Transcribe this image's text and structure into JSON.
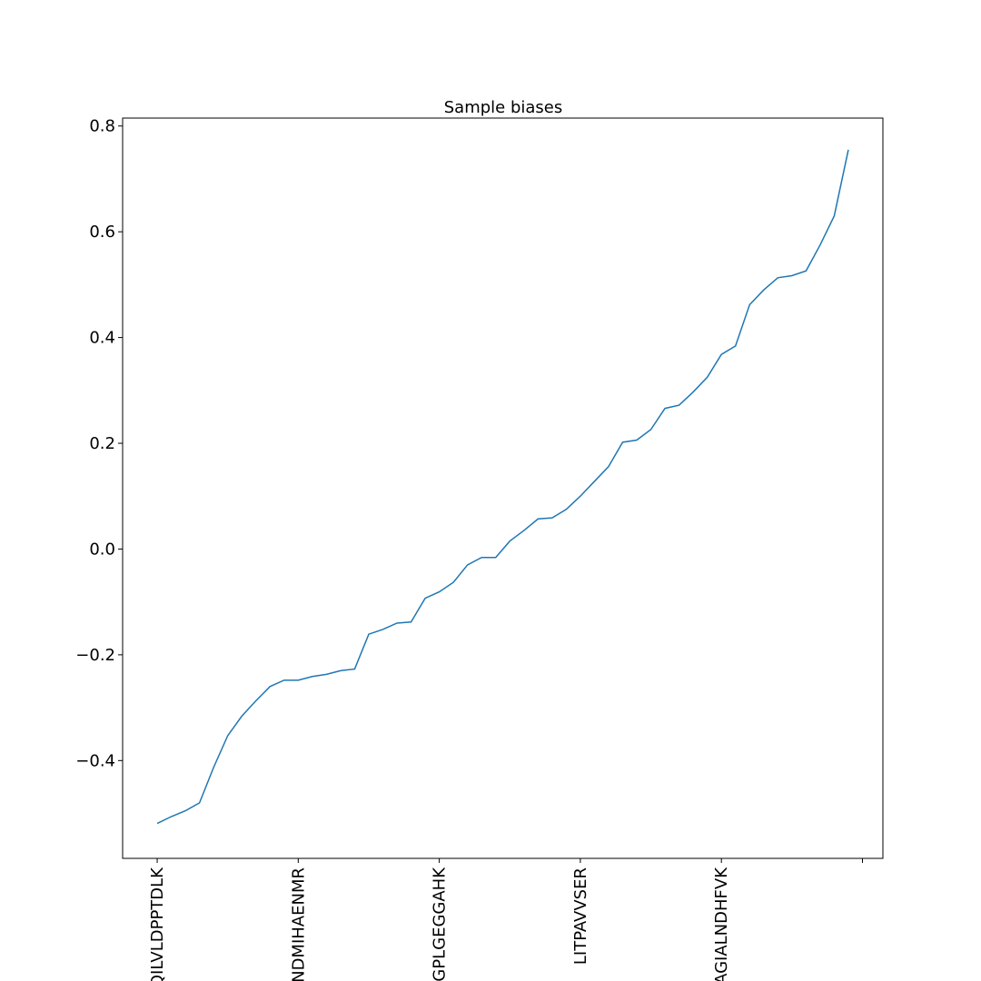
{
  "chart_data": {
    "type": "line",
    "title": "Sample biases",
    "xlabel": "",
    "ylabel": "",
    "ylim": [
      -0.585,
      0.815
    ],
    "yticks": [
      -0.4,
      -0.2,
      0.0,
      0.2,
      0.4,
      0.6,
      0.8
    ],
    "ytick_labels": [
      "−0.4",
      "−0.2",
      "0.0",
      "0.2",
      "0.4",
      "0.6",
      "0.8"
    ],
    "xlim": [
      -2.45,
      51.45
    ],
    "xticks": [
      0,
      10,
      20,
      30,
      40,
      50
    ],
    "xtick_labels": [
      "QILVLDPPTDLK",
      "ANDMIHAENMR",
      "VGPLGEGGAHK",
      "LITPAVVSER",
      "GAGIALNDHFVK",
      ""
    ],
    "grid": false,
    "legend": "none",
    "line_color": "#1f77b4",
    "series": [
      {
        "values": [
          -0.519,
          -0.506,
          -0.495,
          -0.48,
          -0.413,
          -0.353,
          -0.316,
          -0.287,
          -0.26,
          -0.248,
          -0.248,
          -0.241,
          -0.237,
          -0.23,
          -0.227,
          -0.161,
          -0.152,
          -0.14,
          -0.138,
          -0.093,
          -0.081,
          -0.063,
          -0.03,
          -0.016,
          -0.016,
          0.015,
          0.035,
          0.057,
          0.059,
          0.075,
          0.1,
          0.128,
          0.156,
          0.202,
          0.206,
          0.226,
          0.266,
          0.272,
          0.297,
          0.325,
          0.368,
          0.384,
          0.462,
          0.49,
          0.513,
          0.517,
          0.526,
          0.575,
          0.63,
          0.755
        ]
      }
    ]
  }
}
